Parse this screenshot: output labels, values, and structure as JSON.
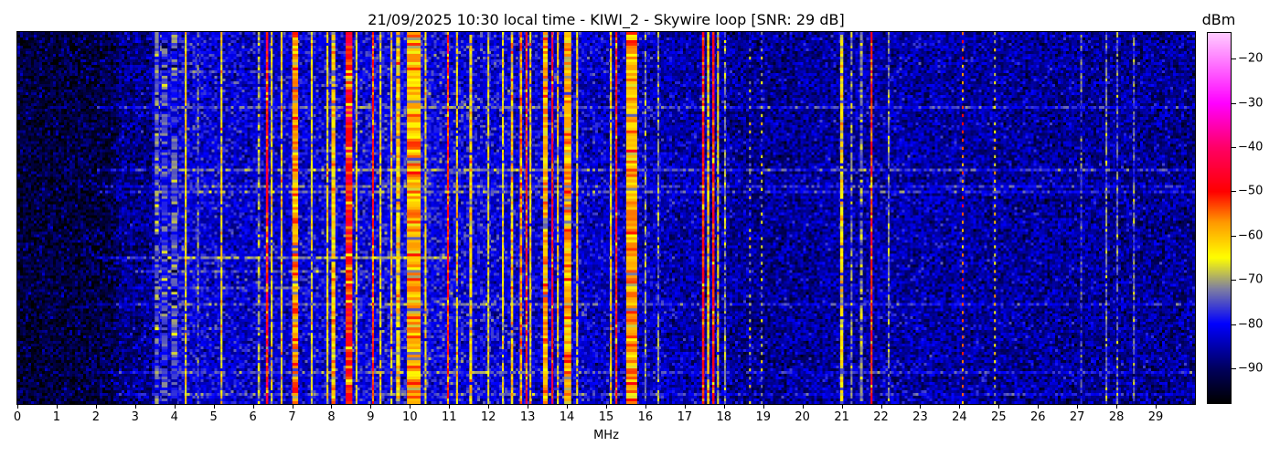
{
  "chart_data": {
    "type": "heatmap",
    "title": "21/09/2025 10:30 local time - KIWI_2 - Skywire loop [SNR: 29 dB]",
    "xlabel": "MHz",
    "ylabel": "",
    "xlim": [
      0,
      30
    ],
    "xticks": [
      0,
      1,
      2,
      3,
      4,
      5,
      6,
      7,
      8,
      9,
      10,
      11,
      12,
      13,
      14,
      15,
      16,
      17,
      18,
      19,
      20,
      21,
      22,
      23,
      24,
      25,
      26,
      27,
      28,
      29
    ],
    "colorbar": {
      "label": "dBm",
      "clim": [
        -98,
        -14
      ],
      "ticks": [
        -20,
        -30,
        -40,
        -50,
        -60,
        -70,
        -80,
        -90
      ],
      "colormap": [
        {
          "dBm": -98,
          "color": "#000000"
        },
        {
          "dBm": -90,
          "color": "#000060"
        },
        {
          "dBm": -80,
          "color": "#0000ff"
        },
        {
          "dBm": -72,
          "color": "#8080a0"
        },
        {
          "dBm": -65,
          "color": "#ffff00"
        },
        {
          "dBm": -57,
          "color": "#ff9900"
        },
        {
          "dBm": -50,
          "color": "#ff0000"
        },
        {
          "dBm": -40,
          "color": "#ff0066"
        },
        {
          "dBm": -30,
          "color": "#ff00ff"
        },
        {
          "dBm": -14,
          "color": "#ffccff"
        }
      ]
    },
    "noise_floor": [
      {
        "freq": 0,
        "dBm": -93
      },
      {
        "freq": 2.4,
        "dBm": -92
      },
      {
        "freq": 2.6,
        "dBm": -88
      },
      {
        "freq": 3.4,
        "dBm": -87
      },
      {
        "freq": 3.6,
        "dBm": -81
      },
      {
        "freq": 6,
        "dBm": -83
      },
      {
        "freq": 10,
        "dBm": -80
      },
      {
        "freq": 13,
        "dBm": -82
      },
      {
        "freq": 16,
        "dBm": -84
      },
      {
        "freq": 19,
        "dBm": -87
      },
      {
        "freq": 22,
        "dBm": -85
      },
      {
        "freq": 25,
        "dBm": -86
      },
      {
        "freq": 30,
        "dBm": -87
      }
    ],
    "signals": [
      {
        "freq": 3.55,
        "width": 0.1,
        "dBm": -74
      },
      {
        "freq": 3.75,
        "width": 0.15,
        "dBm": -76
      },
      {
        "freq": 4.0,
        "width": 0.15,
        "dBm": -75
      },
      {
        "freq": 4.29,
        "width": 0.05,
        "dBm": -63
      },
      {
        "freq": 4.6,
        "width": 0.04,
        "dBm": -74
      },
      {
        "freq": 5.2,
        "width": 0.05,
        "dBm": -63
      },
      {
        "freq": 6.15,
        "width": 0.06,
        "dBm": -70
      },
      {
        "freq": 6.36,
        "width": 0.06,
        "dBm": -48
      },
      {
        "freq": 6.48,
        "width": 0.05,
        "dBm": -64
      },
      {
        "freq": 6.73,
        "width": 0.05,
        "dBm": -62
      },
      {
        "freq": 7.08,
        "width": 0.15,
        "dBm": -57
      },
      {
        "freq": 7.5,
        "width": 0.05,
        "dBm": -64
      },
      {
        "freq": 7.9,
        "width": 0.05,
        "dBm": -63
      },
      {
        "freq": 8.05,
        "width": 0.1,
        "dBm": -61
      },
      {
        "freq": 8.45,
        "width": 0.17,
        "dBm": -49
      },
      {
        "freq": 8.64,
        "width": 0.05,
        "dBm": -64
      },
      {
        "freq": 9.06,
        "width": 0.05,
        "dBm": -50
      },
      {
        "freq": 9.25,
        "width": 0.05,
        "dBm": -64
      },
      {
        "freq": 9.53,
        "width": 0.05,
        "dBm": -62
      },
      {
        "freq": 9.7,
        "width": 0.1,
        "dBm": -62
      },
      {
        "freq": 10.1,
        "width": 0.35,
        "dBm": -58
      },
      {
        "freq": 10.4,
        "width": 0.05,
        "dBm": -64
      },
      {
        "freq": 10.97,
        "width": 0.05,
        "dBm": -50
      },
      {
        "freq": 11.2,
        "width": 0.05,
        "dBm": -63
      },
      {
        "freq": 11.55,
        "width": 0.07,
        "dBm": -62
      },
      {
        "freq": 12.0,
        "width": 0.05,
        "dBm": -65
      },
      {
        "freq": 12.37,
        "width": 0.05,
        "dBm": -64
      },
      {
        "freq": 12.6,
        "width": 0.06,
        "dBm": -62
      },
      {
        "freq": 12.83,
        "width": 0.06,
        "dBm": -57
      },
      {
        "freq": 12.97,
        "width": 0.05,
        "dBm": -50
      },
      {
        "freq": 13.07,
        "width": 0.05,
        "dBm": -63
      },
      {
        "freq": 13.45,
        "width": 0.12,
        "dBm": -58
      },
      {
        "freq": 13.63,
        "width": 0.05,
        "dBm": -47
      },
      {
        "freq": 13.77,
        "width": 0.05,
        "dBm": -62
      },
      {
        "freq": 14.02,
        "width": 0.18,
        "dBm": -58
      },
      {
        "freq": 14.26,
        "width": 0.05,
        "dBm": -62
      },
      {
        "freq": 15.12,
        "width": 0.05,
        "dBm": -63
      },
      {
        "freq": 15.26,
        "width": 0.05,
        "dBm": -50
      },
      {
        "freq": 15.65,
        "width": 0.28,
        "dBm": -58
      },
      {
        "freq": 16.0,
        "width": 0.05,
        "dBm": -72
      },
      {
        "freq": 16.33,
        "width": 0.05,
        "dBm": -72
      },
      {
        "freq": 17.47,
        "width": 0.06,
        "dBm": -50
      },
      {
        "freq": 17.6,
        "width": 0.06,
        "dBm": -61
      },
      {
        "freq": 17.73,
        "width": 0.06,
        "dBm": -49
      },
      {
        "freq": 17.85,
        "width": 0.05,
        "dBm": -63
      },
      {
        "freq": 18.03,
        "width": 0.05,
        "dBm": -72
      },
      {
        "freq": 18.66,
        "width": 0.04,
        "dBm": -68
      },
      {
        "freq": 18.96,
        "width": 0.04,
        "dBm": -68
      },
      {
        "freq": 21.0,
        "width": 0.08,
        "dBm": -64
      },
      {
        "freq": 21.25,
        "width": 0.05,
        "dBm": -72
      },
      {
        "freq": 21.5,
        "width": 0.07,
        "dBm": -72
      },
      {
        "freq": 21.76,
        "width": 0.05,
        "dBm": -50
      },
      {
        "freq": 22.2,
        "width": 0.05,
        "dBm": -72
      },
      {
        "freq": 24.08,
        "width": 0.04,
        "dBm": -54
      },
      {
        "freq": 24.9,
        "width": 0.04,
        "dBm": -64
      },
      {
        "freq": 27.1,
        "width": 0.04,
        "dBm": -76
      },
      {
        "freq": 27.74,
        "width": 0.04,
        "dBm": -72
      },
      {
        "freq": 28.02,
        "width": 0.04,
        "dBm": -74
      },
      {
        "freq": 28.44,
        "width": 0.04,
        "dBm": -73
      }
    ]
  }
}
